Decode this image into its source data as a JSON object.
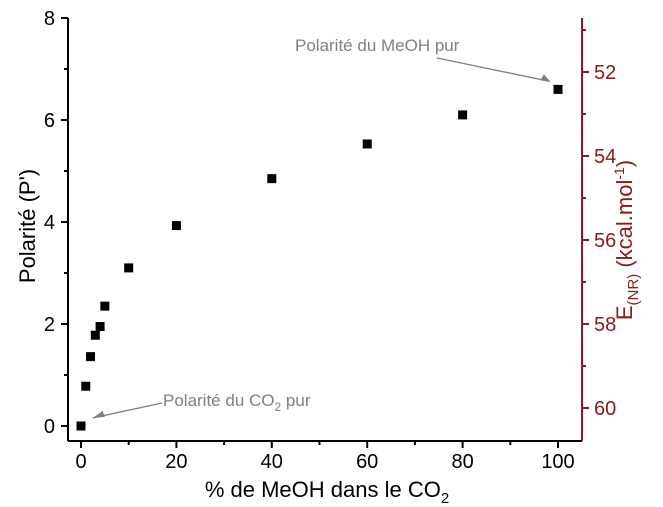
{
  "chart_data": {
    "type": "scatter",
    "title": "",
    "xlabel_main": "% de MeOH dans le CO",
    "xlabel_sub": "2",
    "ylabel": "Polarité (P')",
    "y2label_main": "E",
    "y2label_sub": "(NR)",
    "y2label_unit": " (kcal.mol",
    "y2label_sup": "-1",
    "y2label_close": ")",
    "xlim": [
      0,
      100
    ],
    "ylim": [
      0,
      8
    ],
    "y2lim": [
      61,
      51
    ],
    "x_ticks": [
      0,
      20,
      40,
      60,
      80,
      100
    ],
    "y_ticks": [
      0,
      2,
      4,
      6,
      8
    ],
    "y2_ticks": [
      52,
      54,
      56,
      58,
      60
    ],
    "series": [
      {
        "x": [
          0,
          1,
          2,
          3,
          4,
          5,
          10,
          20,
          40,
          60,
          80,
          100
        ],
        "y": [
          0,
          0.78,
          1.36,
          1.78,
          1.95,
          2.35,
          3.1,
          3.93,
          4.85,
          5.53,
          6.1,
          6.6
        ]
      }
    ],
    "annotations": [
      {
        "text_main": "Polarité du MeOH pur",
        "text_sub": "",
        "text_tail": "",
        "target": [
          100,
          6.6
        ]
      },
      {
        "text_main": "Polarité du CO",
        "text_sub": "2",
        "text_tail": " pur",
        "target": [
          0.8,
          0.1
        ]
      }
    ],
    "colors": {
      "left_axis": "#000000",
      "right_axis": "#8b1a1a",
      "annotation": "#808080",
      "points": "#000000"
    }
  }
}
